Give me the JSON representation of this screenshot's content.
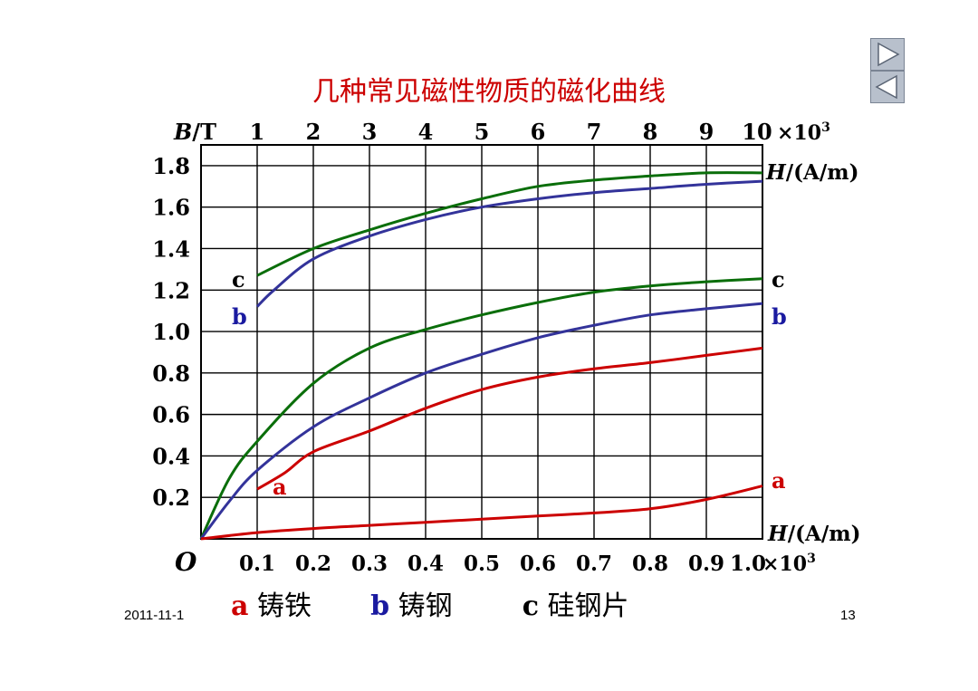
{
  "title": "几种常见磁性物质的磁化曲线",
  "nav": {
    "next_icon": "play-right-icon",
    "prev_icon": "play-left-icon"
  },
  "footer": {
    "date": "2011-11-1",
    "page": "13"
  },
  "legend": [
    {
      "letter": "a",
      "text": "铸铁",
      "color": "#cc0000"
    },
    {
      "letter": "b",
      "text": "铸钢",
      "color": "#1a1aa0"
    },
    {
      "letter": "c",
      "text": "硅钢片",
      "color": "#000000"
    }
  ],
  "chart_data": {
    "type": "line",
    "title": "几种常见磁性物质的磁化曲线",
    "ylabel_prefix": "B",
    "ylabel_suffix": "/T",
    "ylim": [
      0,
      1.9
    ],
    "y_ticks": [
      "0.2",
      "0.4",
      "0.6",
      "0.8",
      "1.0",
      "1.2",
      "1.4",
      "1.6",
      "1.8"
    ],
    "origin_label": "O",
    "top_axis": {
      "ticks": [
        "1",
        "2",
        "3",
        "4",
        "5",
        "6",
        "7",
        "8",
        "9",
        "10"
      ],
      "multiplier": "×10",
      "exponent": "3",
      "label_italic": "H",
      "label_rest": "/(A/m)",
      "range": [
        0,
        10000
      ]
    },
    "bottom_axis": {
      "ticks": [
        "0.1",
        "0.2",
        "0.3",
        "0.4",
        "0.5",
        "0.6",
        "0.7",
        "0.8",
        "0.9",
        "1.0"
      ],
      "multiplier": "×10",
      "exponent": "3",
      "label_italic": "H",
      "label_rest": "/(A/m)",
      "range": [
        0,
        1000
      ]
    },
    "grid": true,
    "colors": {
      "a": "#cc0000",
      "b": "#33339a",
      "c": "#0a6e0a"
    },
    "label_colors": {
      "a": "#cc0000",
      "b": "#1a1aa0",
      "c": "#000000"
    },
    "series": [
      {
        "name": "c",
        "axis": "top",
        "color": "#0a6e0a",
        "x": [
          1000,
          2000,
          3000,
          4000,
          5000,
          6000,
          7000,
          8000,
          9000,
          10000
        ],
        "y": [
          1.27,
          1.4,
          1.49,
          1.57,
          1.64,
          1.7,
          1.73,
          1.75,
          1.765,
          1.765
        ]
      },
      {
        "name": "b",
        "axis": "top",
        "color": "#33339a",
        "x": [
          1000,
          1300,
          2000,
          3000,
          4000,
          5000,
          6000,
          7000,
          8000,
          9000,
          10000
        ],
        "y": [
          1.12,
          1.2,
          1.35,
          1.46,
          1.54,
          1.6,
          1.64,
          1.67,
          1.69,
          1.71,
          1.725
        ]
      },
      {
        "name": "c",
        "axis": "bottom",
        "color": "#0a6e0a",
        "x": [
          0,
          50,
          100,
          200,
          300,
          400,
          500,
          600,
          700,
          800,
          900,
          1000
        ],
        "y": [
          0,
          0.29,
          0.47,
          0.75,
          0.92,
          1.01,
          1.08,
          1.14,
          1.19,
          1.22,
          1.24,
          1.255
        ]
      },
      {
        "name": "b",
        "axis": "bottom",
        "color": "#33339a",
        "x": [
          0,
          50,
          100,
          200,
          300,
          400,
          500,
          600,
          700,
          800,
          900,
          1000
        ],
        "y": [
          0,
          0.18,
          0.33,
          0.54,
          0.68,
          0.8,
          0.89,
          0.97,
          1.03,
          1.08,
          1.11,
          1.135
        ]
      },
      {
        "name": "a",
        "axis": "bottom",
        "color": "#cc0000",
        "x": [
          100,
          150,
          200,
          300,
          400,
          500,
          600,
          700,
          800,
          900,
          1000
        ],
        "y": [
          0.24,
          0.32,
          0.42,
          0.52,
          0.63,
          0.72,
          0.78,
          0.82,
          0.85,
          0.885,
          0.92
        ]
      },
      {
        "name": "a",
        "axis": "top",
        "color": "#cc0000",
        "x": [
          0,
          1000,
          2000,
          3000,
          4000,
          5000,
          6000,
          7000,
          8000,
          9000,
          10000
        ],
        "y": [
          0,
          0.03,
          0.05,
          0.065,
          0.08,
          0.095,
          0.11,
          0.125,
          0.145,
          0.19,
          0.255
        ]
      }
    ],
    "curve_labels": [
      {
        "text": "c",
        "key": "c",
        "side": "left",
        "y": 1.25
      },
      {
        "text": "b",
        "key": "b",
        "side": "left",
        "y": 1.07
      },
      {
        "text": "a",
        "key": "a",
        "side": "left-inner",
        "y": 0.25
      },
      {
        "text": "c",
        "key": "c",
        "side": "right",
        "y": 1.25
      },
      {
        "text": "b",
        "key": "b",
        "side": "right",
        "y": 1.07
      },
      {
        "text": "a",
        "key": "a",
        "side": "right",
        "y": 0.28
      }
    ]
  }
}
